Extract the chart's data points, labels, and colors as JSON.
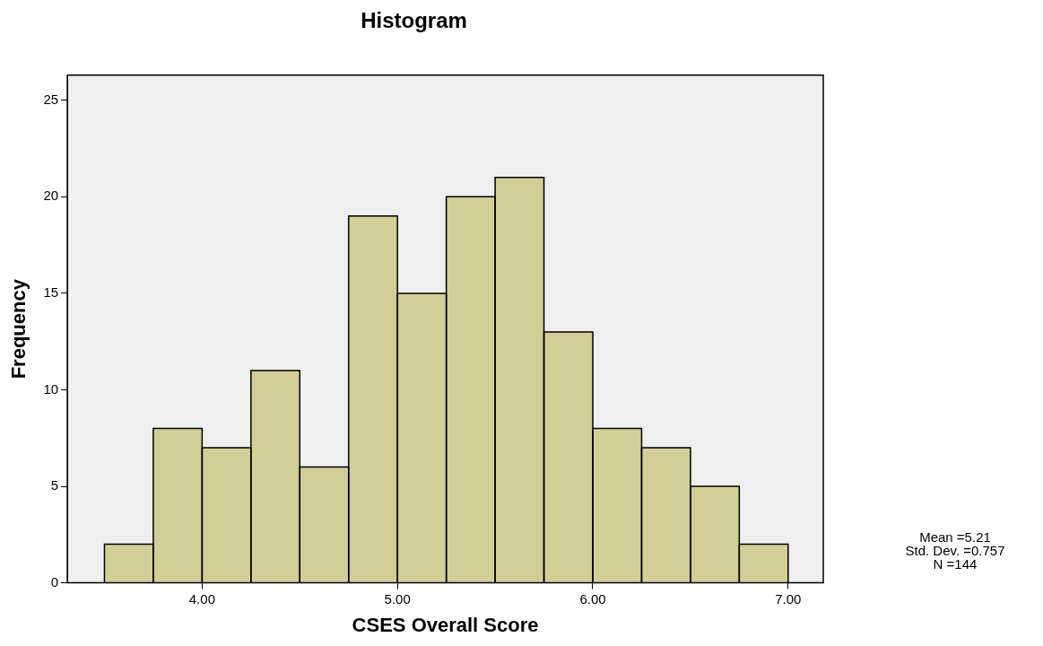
{
  "chart_data": {
    "type": "histogram",
    "title": "Histogram",
    "xlabel": "CSES Overall Score",
    "ylabel": "Frequency",
    "bins": [
      3.5,
      3.75,
      4.0,
      4.25,
      4.5,
      4.75,
      5.0,
      5.25,
      5.5,
      5.75,
      6.0,
      6.25,
      6.5,
      6.75,
      7.0
    ],
    "values": [
      2,
      8,
      7,
      11,
      6,
      19,
      15,
      20,
      21,
      13,
      8,
      7,
      5,
      2
    ],
    "color": "#d3ce97",
    "xlim": [
      3.31,
      7.18
    ],
    "xticks": [
      {
        "value": 4,
        "label": "4.00"
      },
      {
        "value": 5,
        "label": "5.00"
      },
      {
        "value": 6,
        "label": "6.00"
      },
      {
        "value": 7,
        "label": "7.00"
      }
    ],
    "ylim": [
      0,
      26.3
    ],
    "yticks": [
      0,
      5,
      10,
      15,
      20,
      25
    ],
    "grid": false,
    "legend": false,
    "annotations": [
      "Mean =5.21",
      "Std. Dev. =0.757",
      "N =144"
    ]
  }
}
